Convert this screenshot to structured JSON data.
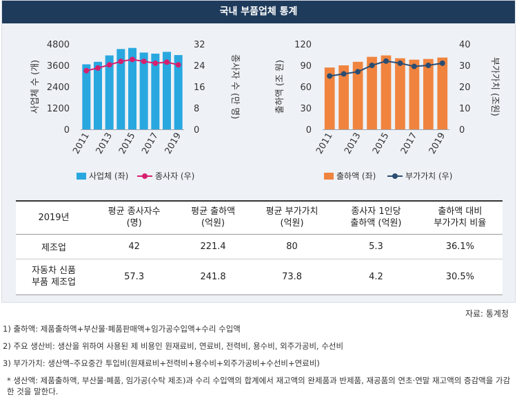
{
  "header": {
    "title": "국내 부품업체 통계"
  },
  "chart_data": [
    {
      "type": "bar",
      "categories": [
        "2011",
        "2012",
        "2013",
        "2014",
        "2015",
        "2016",
        "2017",
        "2018",
        "2019"
      ],
      "x_tick_labels": [
        "2011",
        "2013",
        "2015",
        "2017",
        "2019"
      ],
      "series": [
        {
          "name": "사업체 (좌)",
          "kind": "bar",
          "axis": "left",
          "color": "#29a8e0",
          "values": [
            3660,
            3800,
            4160,
            4520,
            4580,
            4320,
            4260,
            4360,
            4180
          ]
        },
        {
          "name": "종사자 (우)",
          "kind": "line",
          "axis": "right",
          "color": "#d6206e",
          "values": [
            22,
            23,
            24.2,
            25.5,
            26.2,
            25.5,
            24.8,
            25.2,
            24.2
          ]
        }
      ],
      "ylabel": "사업체 수 (개)",
      "ylabel2": "종사자 수 (만 명)",
      "ylim": [
        0,
        4800
      ],
      "yticks": [
        "4800",
        "3600",
        "2400",
        "1200",
        "0"
      ],
      "ylim2": [
        0,
        32
      ],
      "yticks2": [
        "32",
        "24",
        "16",
        "8",
        "0"
      ],
      "grid": false,
      "legend": "bottom"
    },
    {
      "type": "bar",
      "categories": [
        "2011",
        "2012",
        "2013",
        "2014",
        "2015",
        "2016",
        "2017",
        "2018",
        "2019"
      ],
      "x_tick_labels": [
        "2011",
        "2013",
        "2015",
        "2017",
        "2019"
      ],
      "series": [
        {
          "name": "출하액 (좌)",
          "kind": "bar",
          "axis": "left",
          "color": "#f0843f",
          "values": [
            87,
            90,
            95,
            102,
            104,
            100,
            98,
            99,
            101
          ]
        },
        {
          "name": "부가가치 (우)",
          "kind": "line",
          "axis": "right",
          "color": "#2b4d72",
          "values": [
            25,
            26,
            27,
            30,
            32,
            31,
            29.5,
            30,
            31
          ]
        }
      ],
      "ylabel": "출하액 (조 원)",
      "ylabel2": "부가가치 (조원)",
      "ylim": [
        0,
        120
      ],
      "yticks": [
        "120",
        "90",
        "60",
        "30",
        "0"
      ],
      "ylim2": [
        0,
        40
      ],
      "yticks2": [
        "40",
        "30",
        "20",
        "10",
        "0"
      ],
      "grid": false,
      "legend": "bottom"
    }
  ],
  "table": {
    "headers": [
      "2019년",
      "평균 종사자수\n(명)",
      "평균 출하액\n(억원)",
      "평균 부가가치\n(억원)",
      "종사자 1인당\n출하액 (억원)",
      "출하액 대비\n부가가치 비율"
    ],
    "rows": [
      {
        "label": "제조업",
        "values": [
          "42",
          "221.4",
          "80",
          "5.3",
          "36.1%"
        ]
      },
      {
        "label": "자동차 신품\n부품 제조업",
        "values": [
          "57.3",
          "241.8",
          "73.8",
          "4.2",
          "30.5%"
        ]
      }
    ]
  },
  "source": "자료: 통계청",
  "notes": [
    "1) 출하액: 제품출하액+부산물·폐품판매액+임가공수입액+수리 수입액",
    "2) 주요 생산비: 생산을 위하여 사용된 제 비용인 원재료비, 연료비, 전력비, 용수비, 외주가공비, 수선비",
    "3) 부가가치: 생산액–주요중간 투입비(원재료비+전력비+용수비+외주가공비+수선비+연료비)",
    "* 생산액: 제품출하액, 부산물·폐품, 임가공(수탁 제조)과 수리 수입액의 합계에서 재고액의 완제품과 반제품, 재공품의 연초·연말 재고액의 증감액을 가감한 것을 말한다."
  ]
}
